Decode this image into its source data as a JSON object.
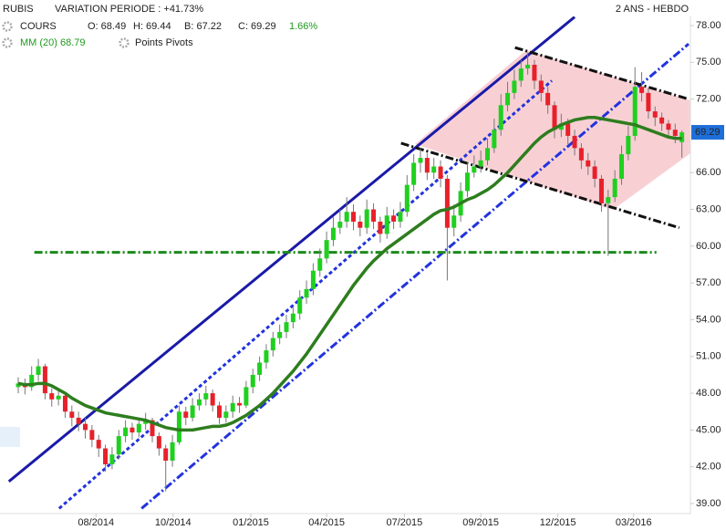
{
  "chart_data": {
    "type": "candlestick",
    "header": {
      "symbol": "RUBIS",
      "variation": "VARIATION PERIODE : +41.73%",
      "period": "2 ANS - HEBDO",
      "cours": "COURS",
      "open": "O: 68.49",
      "high": "H: 69.44",
      "low": "B: 67.22",
      "close": "C: 69.29",
      "change": "1.66%",
      "ma": "MM (20) 68.79",
      "pivots": "Points Pivots"
    },
    "open": [
      48.5,
      48.8,
      48.5,
      49.5,
      50.2,
      48.0,
      47.5,
      47.8,
      46.5,
      46.0,
      45.5,
      45.0,
      44.2,
      43.5,
      42.2,
      43.0,
      44.5,
      45.2,
      44.8,
      45.5,
      45.8,
      44.5,
      43.5,
      42.5,
      44.0,
      46.5,
      46.0,
      47.0,
      47.5,
      48.0,
      47.0,
      46.0,
      46.5,
      47.2,
      47.0,
      48.5,
      49.5,
      50.5,
      51.5,
      52.5,
      53.0,
      53.8,
      54.5,
      55.8,
      56.5,
      58.0,
      59.0,
      60.5,
      61.5,
      62.0,
      62.8,
      62.0,
      61.5,
      63.0,
      62.0,
      61.0,
      62.5,
      62.0,
      62.8,
      65.0,
      66.8,
      67.2,
      66.0,
      66.5,
      65.5,
      61.5,
      62.5,
      64.5,
      66.0,
      66.5,
      67.0,
      68.0,
      69.5,
      71.5,
      72.5,
      73.5,
      74.5,
      74.8,
      73.5,
      72.5,
      71.5,
      69.5,
      70.0,
      69.0,
      68.0,
      67.0,
      66.5,
      65.5,
      63.5,
      64.0,
      65.5,
      67.5,
      69.0,
      73.0,
      72.5,
      71.0,
      70.5,
      70.0,
      69.5,
      68.49
    ],
    "high": [
      49.3,
      49.2,
      50.2,
      50.8,
      50.4,
      48.4,
      48.3,
      48.0,
      47.0,
      46.5,
      46.0,
      45.4,
      44.6,
      43.8,
      43.6,
      45.0,
      45.8,
      45.6,
      46.0,
      46.4,
      46.0,
      44.8,
      43.8,
      44.6,
      47.0,
      46.9,
      47.6,
      48.0,
      48.6,
      48.3,
      47.3,
      47.0,
      47.8,
      47.7,
      49.0,
      50.0,
      51.0,
      52.0,
      53.0,
      53.6,
      54.4,
      55.0,
      56.4,
      57.2,
      58.6,
      59.8,
      61.2,
      62.4,
      63.0,
      64.0,
      63.4,
      62.5,
      63.8,
      63.5,
      62.4,
      63.2,
      63.0,
      63.6,
      65.8,
      67.5,
      68.0,
      67.6,
      67.2,
      67.0,
      65.8,
      63.4,
      65.2,
      66.8,
      67.4,
      67.8,
      68.8,
      70.4,
      72.4,
      73.4,
      74.4,
      75.2,
      75.8,
      75.2,
      74.0,
      73.0,
      71.8,
      70.8,
      70.4,
      69.5,
      68.4,
      67.6,
      67.0,
      65.8,
      64.6,
      66.2,
      68.2,
      69.8,
      74.6,
      74.2,
      72.9,
      71.4,
      70.9,
      70.3,
      70.0,
      69.44
    ],
    "low": [
      48.0,
      47.9,
      48.2,
      49.0,
      47.5,
      46.9,
      47.0,
      46.0,
      45.3,
      44.9,
      44.3,
      43.6,
      42.8,
      41.6,
      41.8,
      42.6,
      44.0,
      44.2,
      44.4,
      45.0,
      44.0,
      42.9,
      40.0,
      42.0,
      43.8,
      45.4,
      45.7,
      46.6,
      47.0,
      46.5,
      45.5,
      45.6,
      46.0,
      46.4,
      46.8,
      48.0,
      49.0,
      50.0,
      51.0,
      52.0,
      52.5,
      53.3,
      54.0,
      55.3,
      56.0,
      57.5,
      58.6,
      60.0,
      61.0,
      61.5,
      61.3,
      60.8,
      61.0,
      61.4,
      60.3,
      60.6,
      61.4,
      61.5,
      62.4,
      64.5,
      66.0,
      65.4,
      65.5,
      64.8,
      57.2,
      60.8,
      62.0,
      64.0,
      65.6,
      66.0,
      66.6,
      67.6,
      69.0,
      71.0,
      72.0,
      73.0,
      74.0,
      72.8,
      71.8,
      70.8,
      68.8,
      68.9,
      68.3,
      67.4,
      66.3,
      65.8,
      64.8,
      62.8,
      59.2,
      63.6,
      65.0,
      67.0,
      68.6,
      71.8,
      70.4,
      69.8,
      69.4,
      68.9,
      68.4,
      67.22
    ],
    "close": [
      48.8,
      48.5,
      49.5,
      50.2,
      48.0,
      47.5,
      47.8,
      46.5,
      46.0,
      45.5,
      45.0,
      44.2,
      43.5,
      42.2,
      43.0,
      44.5,
      45.2,
      44.8,
      45.5,
      45.8,
      44.5,
      43.5,
      42.5,
      44.0,
      46.5,
      46.0,
      47.0,
      47.5,
      48.0,
      47.0,
      46.0,
      46.5,
      47.2,
      47.0,
      48.5,
      49.5,
      50.5,
      51.5,
      52.5,
      53.0,
      53.8,
      54.5,
      55.8,
      56.5,
      58.0,
      59.0,
      60.5,
      61.5,
      62.0,
      62.8,
      62.0,
      61.5,
      63.0,
      62.0,
      61.0,
      62.5,
      62.0,
      62.8,
      65.0,
      66.8,
      67.2,
      66.0,
      66.5,
      65.5,
      61.5,
      62.5,
      64.5,
      66.0,
      66.5,
      67.0,
      68.0,
      69.5,
      71.5,
      72.5,
      73.5,
      74.5,
      74.8,
      73.5,
      72.5,
      71.5,
      69.5,
      70.0,
      69.0,
      68.0,
      67.0,
      66.5,
      65.5,
      63.5,
      64.0,
      65.5,
      67.5,
      69.0,
      73.0,
      72.5,
      71.0,
      70.5,
      70.0,
      69.5,
      69.0,
      69.29
    ],
    "up_color": "#1fd01f",
    "down_color": "#e8202a",
    "ma_series": {
      "color": "#2e7d1e",
      "values": [
        48.8,
        48.7,
        48.7,
        48.8,
        48.8,
        48.6,
        48.3,
        48.0,
        47.6,
        47.3,
        47.0,
        46.8,
        46.6,
        46.4,
        46.3,
        46.2,
        46.1,
        46.0,
        45.9,
        45.8,
        45.6,
        45.4,
        45.2,
        45.1,
        45.0,
        45.0,
        45.0,
        45.1,
        45.2,
        45.3,
        45.3,
        45.4,
        45.6,
        45.9,
        46.2,
        46.6,
        47.0,
        47.5,
        48.0,
        48.6,
        49.2,
        49.8,
        50.5,
        51.2,
        52.0,
        52.8,
        53.6,
        54.4,
        55.2,
        56.0,
        56.8,
        57.5,
        58.2,
        58.8,
        59.3,
        59.8,
        60.2,
        60.6,
        61.0,
        61.4,
        61.8,
        62.2,
        62.6,
        62.9,
        63.0,
        63.2,
        63.5,
        63.8,
        64.0,
        64.3,
        64.6,
        65.0,
        65.5,
        66.0,
        66.6,
        67.2,
        67.8,
        68.4,
        68.9,
        69.3,
        69.6,
        69.9,
        70.1,
        70.3,
        70.4,
        70.5,
        70.5,
        70.4,
        70.3,
        70.2,
        70.1,
        70.0,
        69.9,
        69.7,
        69.5,
        69.3,
        69.1,
        68.9,
        68.8,
        68.79
      ]
    },
    "trend_lines": [
      {
        "x": [
          -1.4,
          83
        ],
        "y": [
          40.8,
          78.7
        ],
        "color": "#1a1aa8",
        "style": "solid"
      },
      {
        "x": [
          6.1,
          79.6
        ],
        "y": [
          38.6,
          73.5
        ],
        "color": "#2233dd",
        "style": "dash"
      },
      {
        "x": [
          18.4,
          100
        ],
        "y": [
          38.6,
          76.5
        ],
        "color": "#2233dd",
        "style": "dashdot"
      },
      {
        "x": [
          74.1,
          100
        ],
        "y": [
          76.2,
          72.0
        ],
        "color": "#111111",
        "style": "dashdot"
      },
      {
        "x": [
          57.1,
          98.6
        ],
        "y": [
          68.4,
          61.5
        ],
        "color": "#111111",
        "style": "dashdot"
      },
      {
        "x": [
          2.4,
          95.2
        ],
        "y": [
          59.5,
          59.5
        ],
        "color": "#1c8a1c",
        "style": "dashdot"
      }
    ],
    "x_labels": [
      {
        "value": 11.6,
        "label": "08/2014"
      },
      {
        "value": 23.1,
        "label": "10/2014"
      },
      {
        "value": 34.7,
        "label": "01/2015"
      },
      {
        "value": 46,
        "label": "04/2015"
      },
      {
        "value": 57.6,
        "label": "07/2015"
      },
      {
        "value": 69,
        "label": "09/2015"
      },
      {
        "value": 80.5,
        "label": "12/2015"
      },
      {
        "value": 91.8,
        "label": "03/2016"
      }
    ],
    "ylim": [
      39,
      78
    ],
    "yticks": [
      {
        "value": 39,
        "label": "39.00"
      },
      {
        "value": 42,
        "label": "42.00"
      },
      {
        "value": 45,
        "label": "45.00"
      },
      {
        "value": 48,
        "label": "48.00"
      },
      {
        "value": 51,
        "label": "51.00"
      },
      {
        "value": 54,
        "label": "54.00"
      },
      {
        "value": 57,
        "label": "57.00"
      },
      {
        "value": 60,
        "label": "60.00"
      },
      {
        "value": 63,
        "label": "63.00"
      },
      {
        "value": 66,
        "label": "66.00"
      },
      {
        "value": 69,
        "label": "69.00"
      },
      {
        "value": 72,
        "label": "72.00"
      },
      {
        "value": 75,
        "label": "75.00"
      },
      {
        "value": 78,
        "label": "78.00"
      }
    ]
  }
}
